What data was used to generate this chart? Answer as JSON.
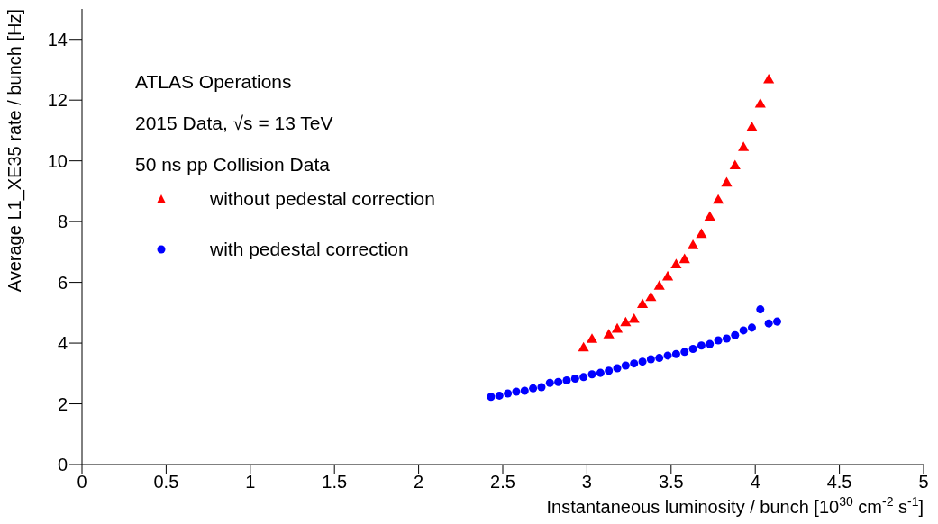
{
  "chart_data": {
    "type": "scatter",
    "xlabel": "Instantaneous luminosity / bunch [10$^{30}$ cm$^{-2}$ s$^{-1}$]",
    "ylabel": "Average L1_XE35 rate / bunch [Hz]",
    "annotations": [
      "ATLAS Operations",
      "2015 Data, √s = 13 TeV",
      "50 ns pp Collision Data"
    ],
    "xlim": [
      0,
      5
    ],
    "xticks": [
      0,
      0.5,
      1,
      1.5,
      2,
      2.5,
      3,
      3.5,
      4,
      4.5,
      5
    ],
    "ylim": [
      0,
      15
    ],
    "yticks": [
      0,
      2,
      4,
      6,
      8,
      10,
      12,
      14
    ],
    "grid": false,
    "legend": "top left",
    "series": [
      {
        "name": "without pedestal correction",
        "color": "#ff0000",
        "marker": "triangle",
        "x": [
          2.98,
          3.03,
          3.13,
          3.18,
          3.23,
          3.28,
          3.33,
          3.38,
          3.43,
          3.48,
          3.53,
          3.58,
          3.63,
          3.68,
          3.73,
          3.78,
          3.83,
          3.88,
          3.93,
          3.98,
          4.03,
          4.08
        ],
        "values": [
          3.83,
          4.11,
          4.26,
          4.45,
          4.66,
          4.77,
          5.26,
          5.49,
          5.86,
          6.17,
          6.57,
          6.74,
          7.2,
          7.57,
          8.14,
          8.69,
          9.26,
          9.83,
          10.43,
          11.09,
          11.86,
          12.66
        ]
      },
      {
        "name": "with pedestal correction",
        "color": "#0000ff",
        "marker": "circle",
        "x": [
          2.43,
          2.48,
          2.53,
          2.58,
          2.63,
          2.68,
          2.73,
          2.78,
          2.83,
          2.88,
          2.93,
          2.98,
          3.03,
          3.08,
          3.13,
          3.18,
          3.23,
          3.28,
          3.33,
          3.38,
          3.43,
          3.48,
          3.53,
          3.58,
          3.63,
          3.68,
          3.73,
          3.78,
          3.83,
          3.88,
          3.93,
          3.98,
          4.03,
          4.08,
          4.13
        ],
        "values": [
          2.23,
          2.27,
          2.34,
          2.4,
          2.43,
          2.51,
          2.55,
          2.69,
          2.72,
          2.77,
          2.83,
          2.88,
          2.97,
          3.02,
          3.09,
          3.17,
          3.26,
          3.33,
          3.39,
          3.47,
          3.51,
          3.59,
          3.64,
          3.71,
          3.81,
          3.92,
          3.97,
          4.09,
          4.15,
          4.26,
          4.42,
          4.51,
          5.11,
          4.65,
          4.71
        ]
      }
    ]
  }
}
